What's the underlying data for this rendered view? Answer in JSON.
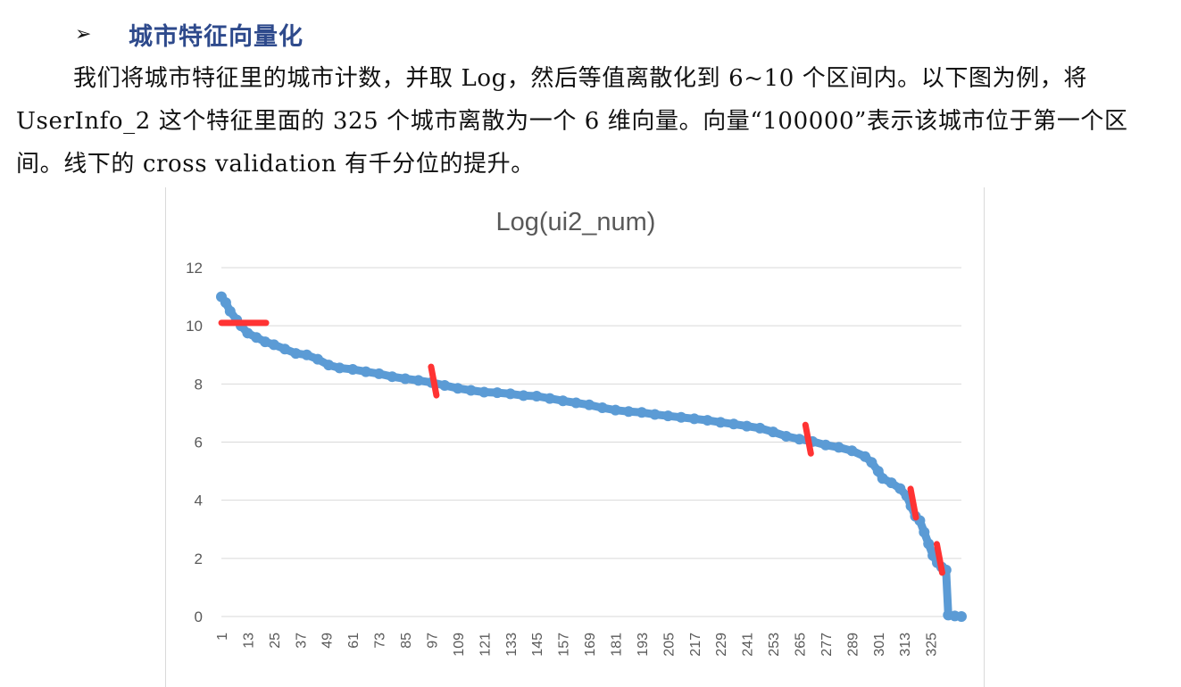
{
  "section": {
    "bullet": "➢",
    "title": "城市特征向量化"
  },
  "paragraph": "我们将城市特征里的城市计数，并取 Log，然后等值离散化到 6~10 个区间内。以下图为例，将 UserInfo_2 这个特征里面的 325 个城市离散为一个 6 维向量。向量“100000”表示该城市位于第一个区间。线下的 cross validation 有千分位的提升。",
  "colors": {
    "heading": "#2e4a8c",
    "series": "#5b9bd5",
    "marker_cuts": "#ff3333",
    "grid": "#d9d9d9"
  },
  "chart_data": {
    "type": "scatter",
    "title": "Log(ui2_num)",
    "xlabel": "",
    "ylabel": "",
    "ylim": [
      0,
      12
    ],
    "yticks": [
      "0",
      "2",
      "4",
      "6",
      "8",
      "10",
      "12"
    ],
    "xticks": [
      "1",
      "13",
      "25",
      "37",
      "49",
      "61",
      "73",
      "85",
      "97",
      "109",
      "121",
      "133",
      "145",
      "157",
      "169",
      "181",
      "193",
      "205",
      "217",
      "229",
      "241",
      "253",
      "265",
      "277",
      "289",
      "301",
      "313",
      "325"
    ],
    "grid": "horizontal",
    "series": [
      {
        "points": [
          [
            1,
            11.0
          ],
          [
            3,
            10.8
          ],
          [
            5,
            10.5
          ],
          [
            8,
            10.2
          ],
          [
            10,
            10.0
          ],
          [
            13,
            9.75
          ],
          [
            17,
            9.6
          ],
          [
            21,
            9.45
          ],
          [
            25,
            9.35
          ],
          [
            30,
            9.2
          ],
          [
            35,
            9.05
          ],
          [
            40,
            9.0
          ],
          [
            45,
            8.85
          ],
          [
            50,
            8.65
          ],
          [
            55,
            8.55
          ],
          [
            61,
            8.5
          ],
          [
            67,
            8.42
          ],
          [
            73,
            8.35
          ],
          [
            79,
            8.25
          ],
          [
            85,
            8.18
          ],
          [
            91,
            8.12
          ],
          [
            97,
            8.05
          ],
          [
            103,
            7.95
          ],
          [
            109,
            7.85
          ],
          [
            115,
            7.78
          ],
          [
            121,
            7.72
          ],
          [
            127,
            7.7
          ],
          [
            133,
            7.66
          ],
          [
            139,
            7.6
          ],
          [
            145,
            7.58
          ],
          [
            151,
            7.5
          ],
          [
            157,
            7.42
          ],
          [
            163,
            7.35
          ],
          [
            169,
            7.28
          ],
          [
            175,
            7.18
          ],
          [
            181,
            7.1
          ],
          [
            187,
            7.05
          ],
          [
            193,
            7.02
          ],
          [
            199,
            6.95
          ],
          [
            205,
            6.9
          ],
          [
            211,
            6.85
          ],
          [
            217,
            6.8
          ],
          [
            223,
            6.75
          ],
          [
            229,
            6.68
          ],
          [
            235,
            6.62
          ],
          [
            241,
            6.55
          ],
          [
            247,
            6.48
          ],
          [
            253,
            6.35
          ],
          [
            259,
            6.2
          ],
          [
            265,
            6.1
          ],
          [
            271,
            6.02
          ],
          [
            277,
            5.9
          ],
          [
            283,
            5.82
          ],
          [
            289,
            5.7
          ],
          [
            295,
            5.5
          ],
          [
            298,
            5.3
          ],
          [
            301,
            5.0
          ],
          [
            303,
            4.75
          ],
          [
            307,
            4.6
          ],
          [
            311,
            4.4
          ],
          [
            314,
            4.15
          ],
          [
            316,
            3.8
          ],
          [
            318,
            3.45
          ],
          [
            320,
            3.3
          ],
          [
            322,
            2.9
          ],
          [
            324,
            2.5
          ],
          [
            326,
            2.1
          ],
          [
            328,
            1.85
          ],
          [
            330,
            1.7
          ],
          [
            332,
            1.6
          ],
          [
            333,
            0.05
          ],
          [
            336,
            0.02
          ],
          [
            339,
            0.0
          ]
        ]
      }
    ],
    "cut_markers": [
      {
        "x": 10,
        "y": 10.1,
        "orientation": "horizontal"
      },
      {
        "x": 98,
        "y": 8.1,
        "orientation": "vertical"
      },
      {
        "x": 269,
        "y": 6.1,
        "orientation": "vertical"
      },
      {
        "x": 317,
        "y": 3.9,
        "orientation": "vertical"
      },
      {
        "x": 329,
        "y": 2.0,
        "orientation": "vertical"
      }
    ]
  }
}
